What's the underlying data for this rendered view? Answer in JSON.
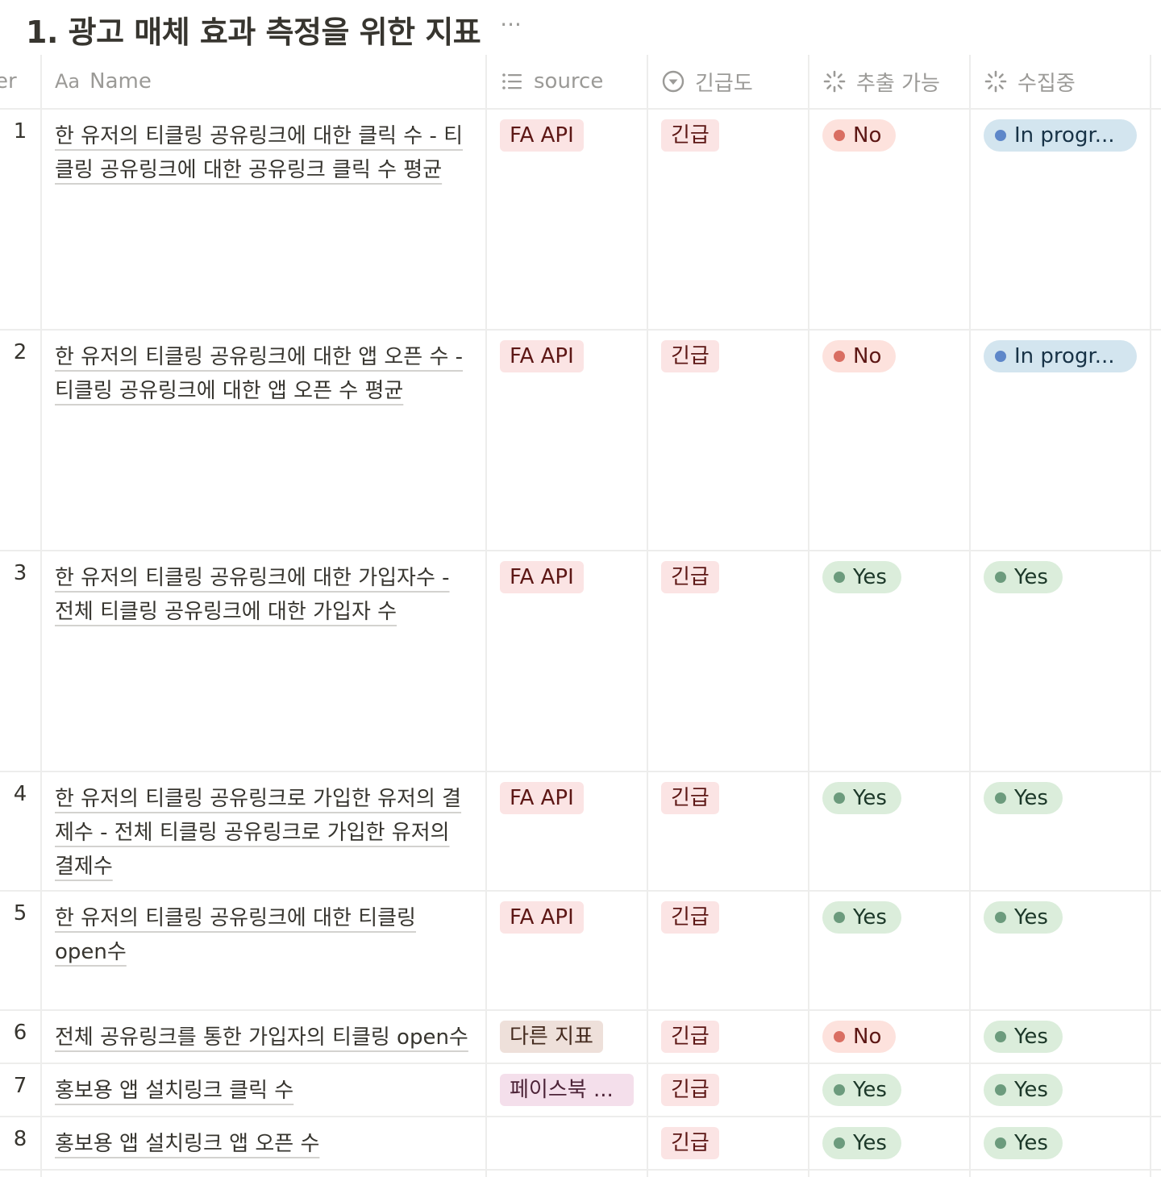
{
  "title": "1. 광고 매체 효과 측정을 위한 지표",
  "more_label": "···",
  "columns": {
    "number_clipped": "er",
    "name_prefix": "Aa",
    "name": "Name",
    "source": "source",
    "urgency": "긴급도",
    "extractable": "추출 가능",
    "collecting": "수집중"
  },
  "icons": {
    "source": "list-icon",
    "urgency": "select-circle-icon",
    "extractable": "status-spinner-icon",
    "collecting": "status-spinner-icon"
  },
  "colors": {
    "tag_red_bg": "#fbe4e4",
    "tag_brown_bg": "#eee0da",
    "tag_pink_bg": "#f4dfeb",
    "status_no_bg": "#fde2dd",
    "status_yes_bg": "#dbeddb",
    "status_progress_bg": "#d3e5ef"
  },
  "rows": [
    {
      "num": "1",
      "name": "한 유저의 티클링 공유링크에 대한 클릭 수 - 티클링 공유링크에 대한 공유링크 클릭 수 평균",
      "source": "FA API",
      "urgency": "긴급",
      "extractable": "No",
      "collecting": "In progr..."
    },
    {
      "num": "2",
      "name": "한 유저의 티클링 공유링크에 대한 앱 오픈 수 - 티클링 공유링크에 대한 앱 오픈 수 평균",
      "source": "FA API",
      "urgency": "긴급",
      "extractable": "No",
      "collecting": "In progr..."
    },
    {
      "num": "3",
      "name": "한 유저의 티클링 공유링크에 대한 가입자수 - 전체 티클링 공유링크에 대한 가입자 수",
      "source": "FA API",
      "urgency": "긴급",
      "extractable": "Yes",
      "collecting": "Yes"
    },
    {
      "num": "4",
      "name": "한 유저의 티클링 공유링크로 가입한 유저의 결제수 - 전체 티클링 공유링크로 가입한 유저의 결제수",
      "source": "FA API",
      "urgency": "긴급",
      "extractable": "Yes",
      "collecting": "Yes"
    },
    {
      "num": "5",
      "name": "한 유저의 티클링 공유링크에 대한 티클링 open수",
      "source": "FA API",
      "urgency": "긴급",
      "extractable": "Yes",
      "collecting": "Yes"
    },
    {
      "num": "6",
      "name": "전체 공유링크를 통한 가입자의 티클링 open수",
      "source": "다른 지표",
      "urgency": "긴급",
      "extractable": "No",
      "collecting": "Yes"
    },
    {
      "num": "7",
      "name": "홍보용 앱 설치링크 클릭 수",
      "source": "페이스북 ...",
      "urgency": "긴급",
      "extractable": "Yes",
      "collecting": "Yes"
    },
    {
      "num": "8",
      "name": "홍보용 앱 설치링크 앱 오픈 수",
      "source": "",
      "urgency": "긴급",
      "extractable": "Yes",
      "collecting": "Yes"
    }
  ]
}
